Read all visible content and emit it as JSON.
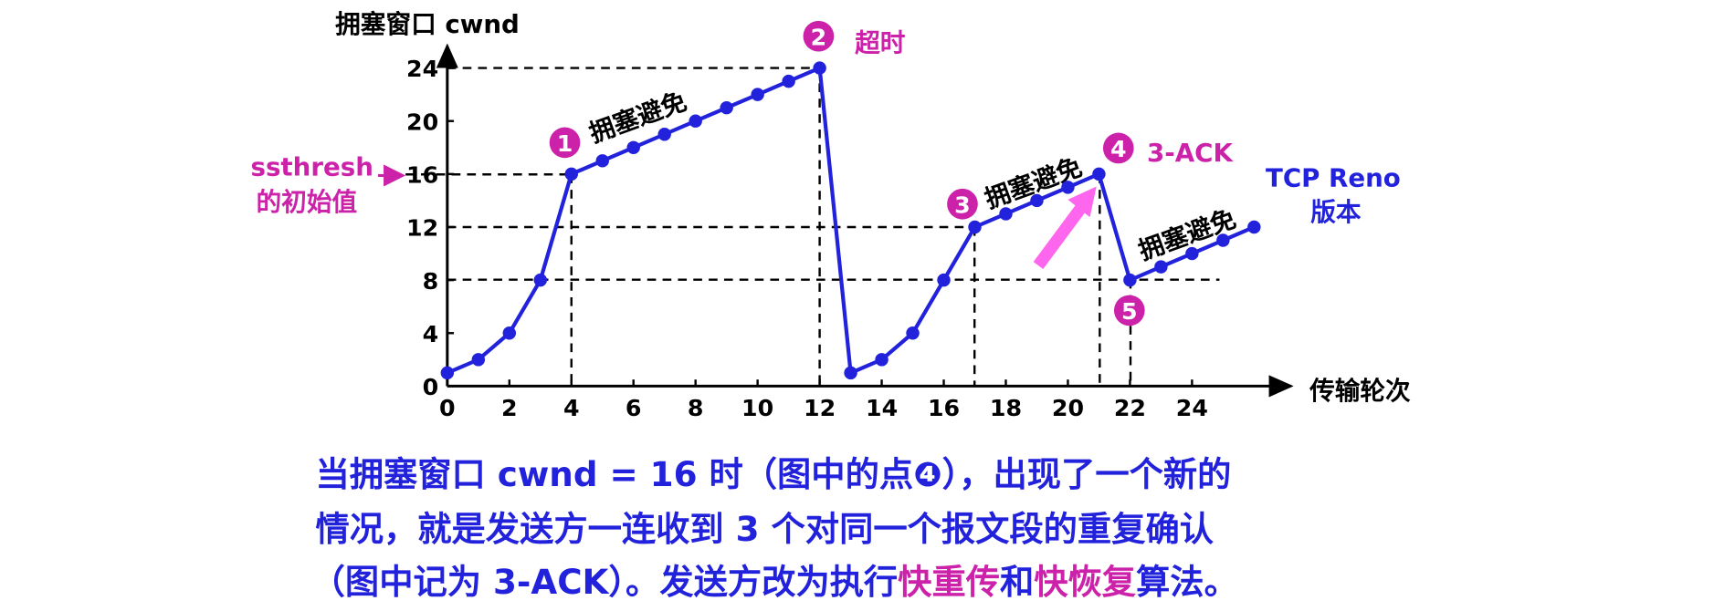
{
  "chart_data": {
    "type": "line",
    "y_label": "拥塞窗口  cwnd",
    "x_label": "传输轮次",
    "x": [
      0,
      1,
      2,
      3,
      4,
      5,
      6,
      7,
      8,
      9,
      10,
      11,
      12,
      13,
      14,
      15,
      16,
      17,
      18,
      19,
      20,
      21,
      22,
      23,
      24,
      25,
      26
    ],
    "series": [
      {
        "name": "cwnd",
        "color": "#2222dd",
        "values": [
          1,
          2,
          4,
          8,
          16,
          17,
          18,
          19,
          20,
          21,
          22,
          23,
          24,
          1,
          2,
          4,
          8,
          12,
          13,
          14,
          15,
          16,
          8,
          9,
          10,
          11,
          12
        ]
      }
    ],
    "xlim": [
      0,
      27
    ],
    "ylim": [
      0,
      24
    ],
    "xticks": [
      0,
      2,
      4,
      6,
      8,
      10,
      12,
      14,
      16,
      18,
      20,
      22,
      24
    ],
    "yticks": [
      0,
      4,
      8,
      12,
      16,
      20,
      24
    ],
    "annotations": {
      "markers": [
        "1",
        "2",
        "3",
        "4",
        "5"
      ],
      "timeout": "超时",
      "ack": "3-ACK",
      "avoid": [
        "拥塞避免",
        "拥塞避免",
        "拥塞避免"
      ],
      "reno": [
        "TCP Reno",
        "版本"
      ],
      "ssthresh": [
        "ssthresh",
        "的初始值"
      ]
    }
  },
  "caption": {
    "lines": [
      [
        {
          "text": "当拥塞窗口 cwnd = 16 时（图中的点❹），出现了一个新的",
          "color": "#2222dd"
        }
      ],
      [
        {
          "text": "情况，就是发送方一连收到 3 个对同一个报文段的重复确认",
          "color": "#2222dd"
        }
      ],
      [
        {
          "text": "（图中记为 3-ACK）。发送方改为执行",
          "color": "#2222dd"
        },
        {
          "text": "快重传",
          "color": "#cc22aa"
        },
        {
          "text": "和",
          "color": "#2222dd"
        },
        {
          "text": "快恢复",
          "color": "#cc22aa"
        },
        {
          "text": "算法。",
          "color": "#2222dd"
        }
      ]
    ]
  }
}
